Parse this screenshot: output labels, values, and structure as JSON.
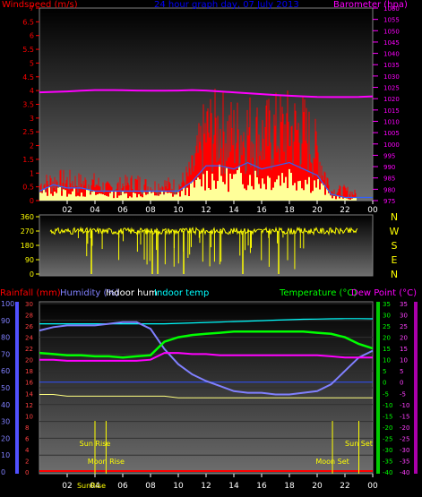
{
  "header": {
    "left_title": "Windspeed (m/s)",
    "center_title": "24 hour graph day, 07 July 2013",
    "right_title": "Barometer (hpa)"
  },
  "colors": {
    "wind": "#ff0000",
    "gust_base": "#ffff99",
    "avg": "#3060ff",
    "barometer": "#ff00ff",
    "dir": "#ffff00",
    "temp": "#00ff00",
    "dew": "#ff00ff",
    "humidity": "#8080ff",
    "indoor_temp": "#00ffff",
    "indoor_hum": "#ffffff",
    "rain": "#ff0000",
    "sun_moon": "#ffff00"
  },
  "chart_data": [
    {
      "type": "area",
      "title": "24 hour graph day, 07 July 2013",
      "ylabel": "Windspeed (m/s)",
      "y2label": "Barometer (hpa)",
      "ylim": [
        0,
        7
      ],
      "y2lim": [
        975,
        1060
      ],
      "y_ticks": [
        "0",
        "0.5",
        "1",
        "1.5",
        "2",
        "2.5",
        "3",
        "3.5",
        "4",
        "4.5",
        "5",
        "5.5",
        "6",
        "6.5",
        "7"
      ],
      "y2_ticks": [
        "975",
        "980",
        "985",
        "990",
        "995",
        "1000",
        "1005",
        "1010",
        "1015",
        "1020",
        "1025",
        "1030",
        "1035",
        "1040",
        "1045",
        "1050",
        "1055",
        "1060"
      ],
      "x_ticks": [
        "02",
        "04",
        "06",
        "08",
        "10",
        "12",
        "14",
        "16",
        "18",
        "20",
        "22",
        "00"
      ],
      "hours": [
        0,
        1,
        2,
        3,
        4,
        5,
        6,
        7,
        8,
        9,
        10,
        11,
        12,
        13,
        14,
        15,
        16,
        17,
        18,
        19,
        20,
        21,
        22,
        23,
        24
      ],
      "gust": [
        0.8,
        1.0,
        1.0,
        0.9,
        0.9,
        0.6,
        0.8,
        0.9,
        0.7,
        0.8,
        0.7,
        1.5,
        3.5,
        3.6,
        3.3,
        3.6,
        3.2,
        3.5,
        3.6,
        3.5,
        2.5,
        0.5,
        0.5,
        0.3,
        0.3
      ],
      "average": [
        0.3,
        0.5,
        0.4,
        0.4,
        0.3,
        0.3,
        0.3,
        0.3,
        0.3,
        0.3,
        0.3,
        0.6,
        1.1,
        1.1,
        1.0,
        1.2,
        1.0,
        1.1,
        1.2,
        1.0,
        0.8,
        0.2,
        0.1,
        0.1,
        0.1
      ],
      "barometer": [
        1022.8,
        1023.0,
        1023.2,
        1023.5,
        1023.8,
        1023.8,
        1023.7,
        1023.6,
        1023.5,
        1023.5,
        1023.6,
        1023.8,
        1023.6,
        1023.2,
        1022.8,
        1022.4,
        1022.0,
        1021.6,
        1021.3,
        1021.0,
        1020.8,
        1020.7,
        1020.7,
        1020.8,
        1021.0
      ]
    },
    {
      "type": "scatter",
      "ylabel": "Wind direction",
      "ylim": [
        0,
        360
      ],
      "y_ticks": [
        "0",
        "90",
        "180",
        "270",
        "360"
      ],
      "compass": [
        "N",
        "W",
        "S",
        "E",
        "N"
      ],
      "hours": [
        0,
        1,
        2,
        3,
        4,
        5,
        6,
        7,
        8,
        9,
        10,
        11,
        12,
        13,
        14,
        15,
        16,
        17,
        18,
        19,
        20,
        21,
        22,
        23,
        24
      ],
      "direction": [
        280,
        285,
        300,
        290,
        280,
        270,
        290,
        285,
        180,
        280,
        270,
        285,
        280,
        200,
        270,
        220,
        250,
        280,
        260,
        290,
        280,
        275,
        270,
        275,
        280
      ]
    },
    {
      "type": "line",
      "ylabel_left": "Rainfall (mm)",
      "ylabel_humidity": "Humidity (%)",
      "ylabel_indoor_hum": "Indoor hum",
      "ylabel_indoor_temp": "Indoor temp",
      "ylabel_right1": "Temperature (°C)",
      "ylabel_right2": "Dew Point (°C)",
      "humidity_ticks": [
        "0",
        "10",
        "20",
        "30",
        "40",
        "50",
        "60",
        "70",
        "80",
        "90",
        "100"
      ],
      "rain_ticks": [
        "0",
        "2",
        "4",
        "6",
        "8",
        "10",
        "12",
        "14",
        "16",
        "18",
        "20",
        "22",
        "24",
        "26",
        "28",
        "30"
      ],
      "temp_ticks": [
        "35",
        "30",
        "25",
        "20",
        "15",
        "10",
        "5",
        "0",
        "-5",
        "-10",
        "-15",
        "-20",
        "-25",
        "-30",
        "-35",
        "-40"
      ],
      "x_ticks": [
        "02",
        "04",
        "06",
        "08",
        "10",
        "12",
        "14",
        "16",
        "18",
        "20",
        "22",
        "00"
      ],
      "hours": [
        0,
        1,
        2,
        3,
        4,
        5,
        6,
        7,
        8,
        9,
        10,
        11,
        12,
        13,
        14,
        15,
        16,
        17,
        18,
        19,
        20,
        21,
        22,
        23,
        24
      ],
      "temperature": [
        13,
        12.5,
        12,
        12,
        11.5,
        11.5,
        11,
        11.5,
        12,
        18,
        20,
        21,
        21.5,
        22,
        22.5,
        22.5,
        22.5,
        22.5,
        22.5,
        22.5,
        22,
        21.5,
        20,
        17,
        15
      ],
      "dewpoint": [
        10,
        10,
        9.5,
        9.5,
        9.5,
        9.5,
        9.5,
        9.5,
        10,
        13,
        13,
        12.5,
        12.5,
        12,
        12,
        12,
        12,
        12,
        12,
        12,
        12,
        11.5,
        11,
        11,
        11
      ],
      "humidity": [
        84,
        86,
        87,
        87,
        87,
        88,
        89,
        89,
        85,
        73,
        64,
        58,
        54,
        51,
        48,
        47,
        47,
        46,
        46,
        47,
        48,
        52,
        60,
        68,
        72
      ],
      "indoor_temp": [
        26,
        26,
        26,
        26,
        26,
        26,
        26,
        26,
        26,
        26,
        26.2,
        26.4,
        26.6,
        26.8,
        27,
        27.2,
        27.4,
        27.6,
        27.8,
        28,
        28.1,
        28.2,
        28.3,
        28.3,
        28.2
      ],
      "indoor_hum": [
        46,
        46,
        45,
        45,
        45,
        45,
        45,
        45,
        45,
        45,
        44,
        44,
        44,
        44,
        44,
        44,
        44,
        44,
        44,
        44,
        44,
        44,
        44,
        44,
        44
      ],
      "rain": [
        0,
        0,
        0,
        0,
        0,
        0,
        0,
        0,
        0,
        0,
        0,
        0,
        0,
        0,
        0,
        0,
        0,
        0,
        0,
        0,
        0,
        0,
        0,
        0,
        0
      ],
      "events": [
        {
          "label": "Sun Rise",
          "hour": 4.0,
          "row": 1
        },
        {
          "label": "Moon Rise",
          "hour": 4.8,
          "row": 2
        },
        {
          "label": "Sun Set",
          "hour": 23.0,
          "row": 1
        },
        {
          "label": "Moon Set",
          "hour": 21.1,
          "row": 2
        }
      ],
      "axis_label_bottom": "SunRise"
    }
  ]
}
